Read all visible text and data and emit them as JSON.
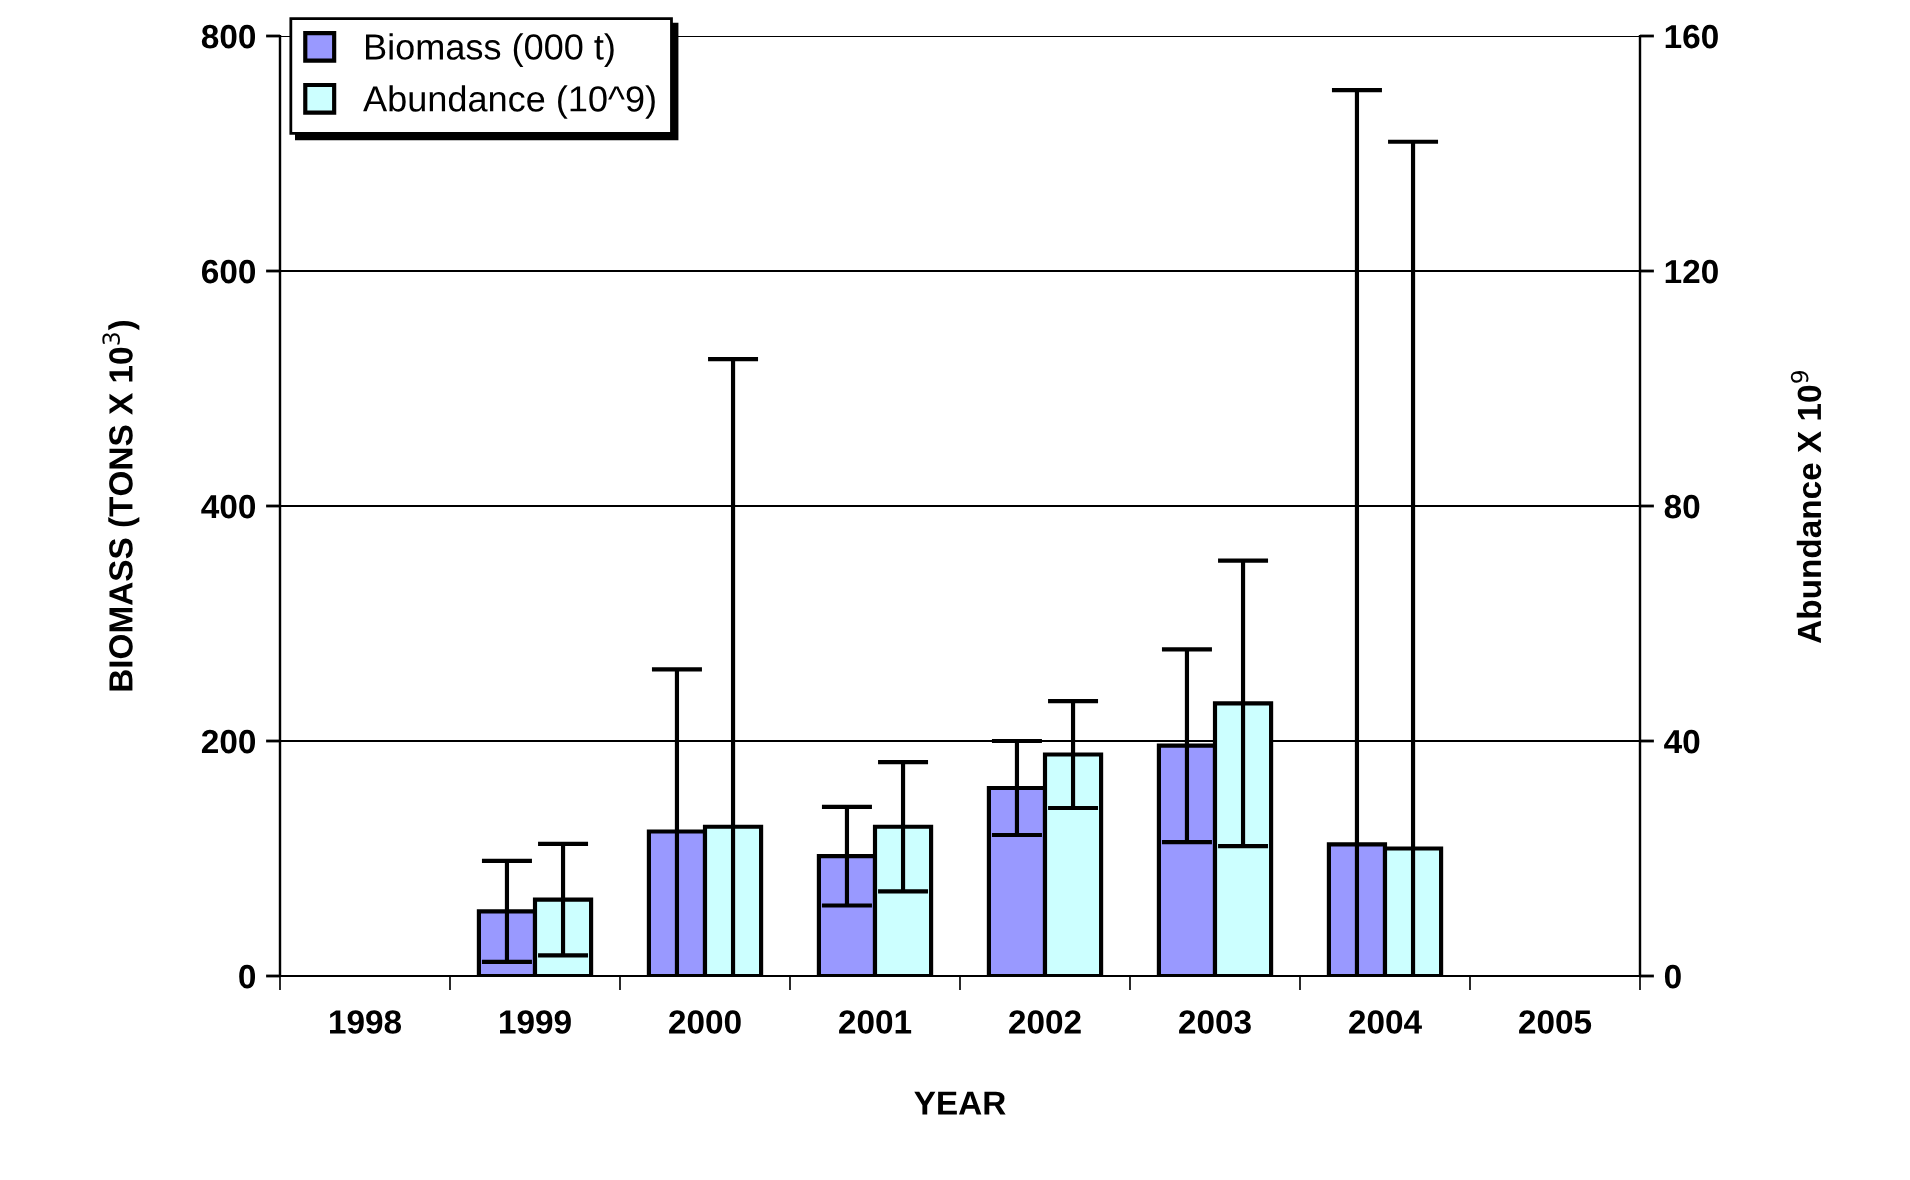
{
  "chart_data": {
    "type": "bar",
    "xlabel": "YEAR",
    "ylabel": "BIOMASS (TONS X 10$^{3}$)",
    "y2label": "Abundance X 10$^{9}$",
    "categories": [
      "1998",
      "1999",
      "2000",
      "2001",
      "2002",
      "2003",
      "2004",
      "2005"
    ],
    "series": [
      {
        "name": "Biomass (000 t)",
        "color": "#9999ff",
        "values": [
          null,
          55,
          123,
          102,
          160,
          196,
          112,
          null
        ],
        "errors": [
          null,
          43,
          [
            0,
            261
          ],
          42,
          40,
          82,
          [
            0,
            754
          ],
          null
        ]
      },
      {
        "name": "Abundance (10^9)",
        "color": "#ccffff",
        "axis": "y2",
        "values": [
          null,
          13,
          25.4,
          25.4,
          37.7,
          46.4,
          21.7,
          null
        ],
        "errors": [
          null,
          9.5,
          [
            0,
            105
          ],
          11,
          9.1,
          24.3,
          [
            0,
            142
          ],
          null
        ]
      }
    ],
    "ylim": [
      0,
      800
    ],
    "yticks": [
      0,
      200,
      400,
      600,
      800
    ],
    "y2lim": [
      0,
      160
    ],
    "y2ticks": [
      0,
      40,
      80,
      120,
      160
    ],
    "grid": "y",
    "legend": "top left"
  }
}
